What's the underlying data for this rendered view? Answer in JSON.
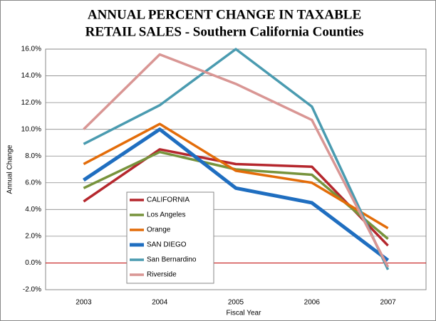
{
  "chart_data": {
    "type": "line",
    "title": [
      "ANNUAL PERCENT CHANGE IN TAXABLE",
      "RETAIL SALES - Southern California Counties"
    ],
    "x_label": "Fiscal Year",
    "y_label": "Annual Change",
    "categories": [
      "2003",
      "2004",
      "2005",
      "2006",
      "2007"
    ],
    "series": [
      {
        "name": "CALIFORNIA",
        "color": "#b5272d",
        "width": 3.5,
        "values": [
          4.6,
          8.5,
          7.4,
          7.2,
          1.3
        ]
      },
      {
        "name": "Los Angeles",
        "color": "#77933c",
        "width": 3.5,
        "values": [
          5.6,
          8.3,
          7.0,
          6.6,
          1.8
        ]
      },
      {
        "name": "Orange",
        "color": "#e36c09",
        "width": 3.5,
        "values": [
          7.4,
          10.4,
          6.9,
          6.0,
          2.6
        ]
      },
      {
        "name": "SAN DIEGO",
        "color": "#1f6ec0",
        "width": 5,
        "values": [
          6.2,
          10.0,
          5.6,
          4.5,
          0.2
        ]
      },
      {
        "name": "San Bernardino",
        "color": "#4a9bb0",
        "width": 3.5,
        "values": [
          8.9,
          11.8,
          16.0,
          11.7,
          -0.5
        ]
      },
      {
        "name": "Riverside",
        "color": "#d99694",
        "width": 3.5,
        "values": [
          10.0,
          15.6,
          13.4,
          10.7,
          -0.3
        ]
      }
    ],
    "ylim": [
      -2,
      16
    ],
    "yticks": [
      {
        "value": -2,
        "label": "-2.0%"
      },
      {
        "value": 0,
        "label": "0.0%"
      },
      {
        "value": 2,
        "label": "2.0%"
      },
      {
        "value": 4,
        "label": "4.0%"
      },
      {
        "value": 6,
        "label": "6.0%"
      },
      {
        "value": 8,
        "label": "8.0%"
      },
      {
        "value": 10,
        "label": "10.0%"
      },
      {
        "value": 12,
        "label": "12.0%"
      },
      {
        "value": 14,
        "label": "14.0%"
      },
      {
        "value": 16,
        "label": "16.0%"
      }
    ],
    "grid": true,
    "zero_line_color": "#c00000"
  }
}
